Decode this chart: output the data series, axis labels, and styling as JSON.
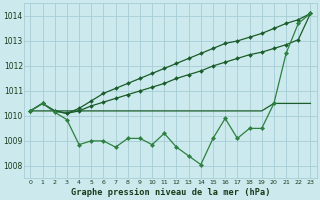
{
  "title": "Graphe pression niveau de la mer (hPa)",
  "bg_color": "#cceaed",
  "grid_color": "#a8cdd4",
  "dark_green": "#1a5c2a",
  "medium_green": "#2d8040",
  "xlim": [
    -0.5,
    23.5
  ],
  "ylim": [
    1007.5,
    1014.5
  ],
  "yticks": [
    1008,
    1009,
    1010,
    1011,
    1012,
    1013,
    1014
  ],
  "xticks": [
    0,
    1,
    2,
    3,
    4,
    5,
    6,
    7,
    8,
    9,
    10,
    11,
    12,
    13,
    14,
    15,
    16,
    17,
    18,
    19,
    20,
    21,
    22,
    23
  ],
  "series_steep": [
    1010.2,
    1010.5,
    1010.2,
    1010.1,
    1010.3,
    1010.6,
    1010.9,
    1011.1,
    1011.3,
    1011.5,
    1011.7,
    1011.9,
    1012.1,
    1012.3,
    1012.5,
    1012.7,
    1012.9,
    1013.0,
    1013.15,
    1013.3,
    1013.5,
    1013.7,
    1013.85,
    1014.1
  ],
  "series_moderate": [
    1010.2,
    1010.5,
    1010.2,
    1010.1,
    1010.2,
    1010.4,
    1010.55,
    1010.7,
    1010.85,
    1011.0,
    1011.15,
    1011.3,
    1011.5,
    1011.65,
    1011.8,
    1012.0,
    1012.15,
    1012.3,
    1012.45,
    1012.55,
    1012.7,
    1012.85,
    1013.05,
    1014.1
  ],
  "series_flat": [
    1010.2,
    1010.2,
    1010.2,
    1010.2,
    1010.2,
    1010.2,
    1010.2,
    1010.2,
    1010.2,
    1010.2,
    1010.2,
    1010.2,
    1010.2,
    1010.2,
    1010.2,
    1010.2,
    1010.2,
    1010.2,
    1010.2,
    1010.2,
    1010.5,
    1010.5,
    1010.5,
    1010.5
  ],
  "series_jagged": [
    1010.2,
    1010.5,
    1010.15,
    1009.85,
    1008.85,
    1009.0,
    1009.0,
    1008.75,
    1009.1,
    1009.1,
    1008.85,
    1009.3,
    1008.75,
    1008.4,
    1008.05,
    1009.1,
    1009.9,
    1009.1,
    1009.5,
    1009.5,
    1010.5,
    1012.5,
    1013.7,
    1014.1
  ]
}
